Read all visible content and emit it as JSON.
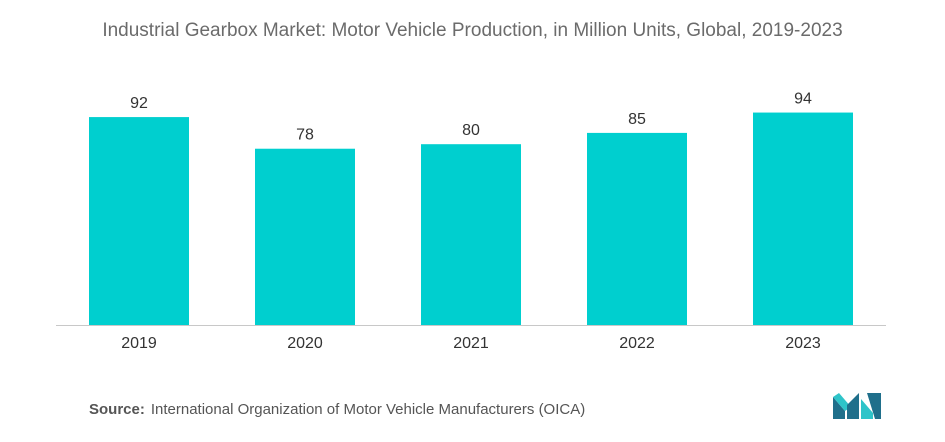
{
  "title": "Industrial Gearbox Market: Motor Vehicle Production, in Million Units, Global, 2019-2023",
  "source": {
    "label": "Source:",
    "text": "International Organization of Motor Vehicle Manufacturers (OICA)"
  },
  "colors": {
    "bar": "#00CFCF",
    "axis": "#c8c8c8",
    "label": "#333333",
    "logo_dark": "#1f6f8b",
    "logo_light": "#2ec4c9"
  },
  "chart_data": {
    "type": "bar",
    "title": "Industrial Gearbox Market: Motor Vehicle Production, in Million Units, Global, 2019-2023",
    "xlabel": "",
    "ylabel": "",
    "categories": [
      "2019",
      "2020",
      "2021",
      "2022",
      "2023"
    ],
    "values": [
      92,
      78,
      80,
      85,
      94
    ],
    "ylim": [
      0,
      100
    ],
    "grid": false,
    "legend": "none",
    "data_labels": true
  }
}
